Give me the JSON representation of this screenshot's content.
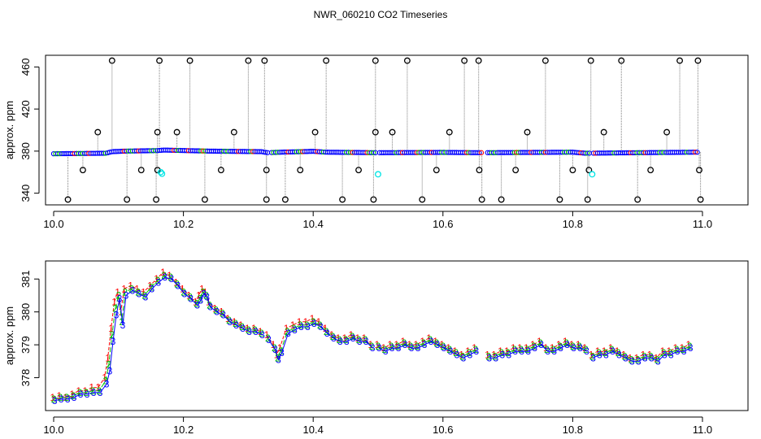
{
  "title": "NWR_060210  CO2 Timeseries",
  "colors": {
    "series1": "#ff0000",
    "series2": "#00c000",
    "series3": "#0000ff",
    "cyan": "#00e5e5",
    "black": "#000000",
    "grey": "#7f7f7f"
  },
  "chart_data": [
    {
      "type": "scatter",
      "title": "NWR_060210  CO2 Timeseries",
      "xlabel": "",
      "ylabel": "approx. ppm",
      "xlim": [
        10.0,
        11.0
      ],
      "ylim": [
        332,
        468
      ],
      "x_ticks": [
        10.0,
        10.2,
        10.4,
        10.6,
        10.8,
        11.0
      ],
      "x_tick_labels": [
        "10.0",
        "10.2",
        "10.4",
        "10.6",
        "10.8",
        "11.0"
      ],
      "y_ticks": [
        340,
        380,
        420,
        460
      ],
      "y_tick_labels": [
        "340",
        "380",
        "420",
        "460"
      ],
      "grid": false,
      "baseline": [
        [
          10.0,
          377.5
        ],
        [
          10.08,
          378
        ],
        [
          10.09,
          379.5
        ],
        [
          10.11,
          380
        ],
        [
          10.16,
          380.5
        ],
        [
          10.17,
          381
        ],
        [
          10.24,
          380
        ],
        [
          10.32,
          379.5
        ],
        [
          10.33,
          378.5
        ],
        [
          10.35,
          379
        ],
        [
          10.4,
          379.8
        ],
        [
          10.42,
          379
        ],
        [
          10.5,
          378.5
        ],
        [
          10.6,
          378.8
        ],
        [
          10.66,
          378.5
        ],
        [
          10.8,
          379
        ],
        [
          10.82,
          378
        ],
        [
          10.9,
          378.5
        ],
        [
          10.99,
          379
        ]
      ],
      "outliers_high": [
        10.09,
        10.163,
        10.21,
        10.3,
        10.325,
        10.42,
        10.496,
        10.545,
        10.633,
        10.655,
        10.758,
        10.828,
        10.875,
        10.965,
        10.993
      ],
      "outliers_low": [
        10.022,
        10.113,
        10.158,
        10.233,
        10.328,
        10.357,
        10.445,
        10.493,
        10.568,
        10.66,
        10.69,
        10.78,
        10.823,
        10.9,
        10.997
      ],
      "outliers_398": [
        10.068,
        10.16,
        10.19,
        10.278,
        10.403,
        10.496,
        10.522,
        10.61,
        10.73,
        10.848,
        10.945
      ],
      "outliers_362": [
        10.045,
        10.135,
        10.16,
        10.258,
        10.328,
        10.38,
        10.47,
        10.59,
        10.656,
        10.712,
        10.8,
        10.825,
        10.92,
        10.995
      ],
      "cyan_points": [
        [
          10.165,
          360
        ],
        [
          10.167,
          358.5
        ],
        [
          10.5,
          358
        ],
        [
          10.83,
          358
        ]
      ]
    },
    {
      "type": "line",
      "title": "",
      "xlabel": "",
      "ylabel": "approx. ppm",
      "xlim": [
        10.0,
        11.0
      ],
      "ylim": [
        377.1,
        381.45
      ],
      "x_ticks": [
        10.0,
        10.2,
        10.4,
        10.6,
        10.8,
        11.0
      ],
      "x_tick_labels": [
        "10.0",
        "10.2",
        "10.4",
        "10.6",
        "10.8",
        "11.0"
      ],
      "y_ticks": [
        378,
        379,
        380,
        381
      ],
      "y_tick_labels": [
        "378",
        "379",
        "380",
        "381"
      ],
      "grid": false,
      "markers": [
        "1",
        "2",
        "3"
      ],
      "x": [
        10.0,
        10.01,
        10.02,
        10.03,
        10.04,
        10.05,
        10.06,
        10.07,
        10.08,
        10.085,
        10.09,
        10.095,
        10.1,
        10.105,
        10.11,
        10.12,
        10.13,
        10.14,
        10.15,
        10.16,
        10.17,
        10.18,
        10.19,
        10.2,
        10.21,
        10.22,
        10.225,
        10.23,
        10.235,
        10.24,
        10.25,
        10.26,
        10.27,
        10.28,
        10.29,
        10.3,
        10.31,
        10.32,
        10.33,
        10.34,
        10.345,
        10.35,
        10.36,
        10.37,
        10.38,
        10.39,
        10.4,
        10.41,
        10.42,
        10.43,
        10.44,
        10.45,
        10.46,
        10.47,
        10.48,
        10.49,
        10.5,
        10.51,
        10.52,
        10.53,
        10.54,
        10.55,
        10.56,
        10.57,
        10.58,
        10.59,
        10.6,
        10.61,
        10.62,
        10.63,
        10.64,
        10.65,
        10.67,
        10.68,
        10.69,
        10.7,
        10.71,
        10.72,
        10.73,
        10.74,
        10.75,
        10.76,
        10.77,
        10.78,
        10.79,
        10.8,
        10.81,
        10.82,
        10.83,
        10.84,
        10.85,
        10.86,
        10.87,
        10.88,
        10.89,
        10.9,
        10.91,
        10.92,
        10.93,
        10.94,
        10.95,
        10.96,
        10.97,
        10.98
      ],
      "series": [
        {
          "values": [
            377.4,
            377.45,
            377.4,
            377.5,
            377.6,
            377.6,
            377.7,
            377.7,
            378.0,
            378.6,
            379.5,
            380.3,
            380.6,
            380.0,
            380.7,
            380.8,
            380.7,
            380.6,
            380.8,
            381.0,
            381.2,
            381.1,
            380.9,
            380.7,
            380.5,
            380.3,
            380.5,
            380.7,
            380.6,
            380.3,
            380.1,
            380.0,
            379.8,
            379.7,
            379.6,
            379.5,
            379.5,
            379.4,
            379.3,
            379.0,
            378.7,
            378.9,
            379.5,
            379.6,
            379.7,
            379.7,
            379.8,
            379.7,
            379.5,
            379.3,
            379.2,
            379.2,
            379.3,
            379.2,
            379.2,
            379.0,
            379.0,
            378.9,
            379.0,
            379.0,
            379.1,
            379.0,
            379.0,
            379.1,
            379.2,
            379.1,
            379.0,
            378.9,
            378.8,
            378.7,
            378.8,
            378.9,
            378.7,
            378.7,
            378.8,
            378.8,
            378.9,
            378.9,
            378.9,
            379.0,
            379.1,
            378.9,
            378.9,
            379.0,
            379.1,
            379.0,
            379.0,
            378.9,
            378.7,
            378.8,
            378.8,
            378.9,
            378.8,
            378.7,
            378.6,
            378.6,
            378.7,
            378.7,
            378.6,
            378.8,
            378.8,
            378.9,
            378.9,
            379.0
          ]
        },
        {
          "values": [
            377.35,
            377.4,
            377.4,
            377.45,
            377.55,
            377.55,
            377.6,
            377.6,
            377.9,
            378.4,
            379.3,
            380.1,
            380.5,
            379.7,
            380.6,
            380.7,
            380.6,
            380.5,
            380.75,
            380.95,
            381.1,
            381.05,
            380.85,
            380.6,
            380.45,
            380.25,
            380.4,
            380.6,
            380.5,
            380.2,
            380.05,
            379.95,
            379.75,
            379.65,
            379.55,
            379.45,
            379.45,
            379.35,
            379.2,
            378.9,
            378.6,
            378.8,
            379.4,
            379.5,
            379.6,
            379.6,
            379.7,
            379.6,
            379.4,
            379.25,
            379.15,
            379.15,
            379.25,
            379.15,
            379.15,
            378.95,
            378.95,
            378.85,
            378.95,
            378.95,
            379.05,
            378.95,
            378.95,
            379.05,
            379.15,
            379.05,
            378.95,
            378.85,
            378.75,
            378.65,
            378.75,
            378.85,
            378.65,
            378.65,
            378.75,
            378.75,
            378.85,
            378.85,
            378.85,
            378.95,
            379.05,
            378.85,
            378.85,
            378.95,
            379.05,
            378.95,
            378.95,
            378.85,
            378.65,
            378.75,
            378.75,
            378.85,
            378.75,
            378.65,
            378.55,
            378.55,
            378.65,
            378.65,
            378.55,
            378.75,
            378.75,
            378.85,
            378.85,
            378.95
          ]
        },
        {
          "values": [
            377.3,
            377.35,
            377.35,
            377.4,
            377.5,
            377.5,
            377.55,
            377.55,
            377.8,
            378.2,
            379.1,
            379.9,
            380.4,
            379.6,
            380.5,
            380.65,
            380.55,
            380.45,
            380.7,
            380.9,
            381.05,
            381.0,
            380.8,
            380.55,
            380.4,
            380.2,
            380.35,
            380.55,
            380.45,
            380.15,
            380.0,
            379.9,
            379.7,
            379.6,
            379.5,
            379.4,
            379.4,
            379.3,
            379.15,
            378.85,
            378.55,
            378.75,
            379.35,
            379.45,
            379.55,
            379.55,
            379.65,
            379.55,
            379.35,
            379.2,
            379.1,
            379.1,
            379.2,
            379.1,
            379.1,
            378.9,
            378.9,
            378.8,
            378.9,
            378.9,
            379.0,
            378.9,
            378.9,
            379.0,
            379.1,
            379.0,
            378.9,
            378.8,
            378.7,
            378.6,
            378.7,
            378.8,
            378.6,
            378.6,
            378.7,
            378.7,
            378.8,
            378.8,
            378.8,
            378.9,
            379.0,
            378.8,
            378.8,
            378.9,
            379.0,
            378.9,
            378.9,
            378.8,
            378.6,
            378.7,
            378.7,
            378.8,
            378.7,
            378.6,
            378.5,
            378.5,
            378.6,
            378.6,
            378.5,
            378.7,
            378.7,
            378.8,
            378.8,
            378.9
          ]
        }
      ],
      "gaps_after_x": [
        10.32,
        10.49,
        10.65,
        10.82
      ]
    }
  ]
}
